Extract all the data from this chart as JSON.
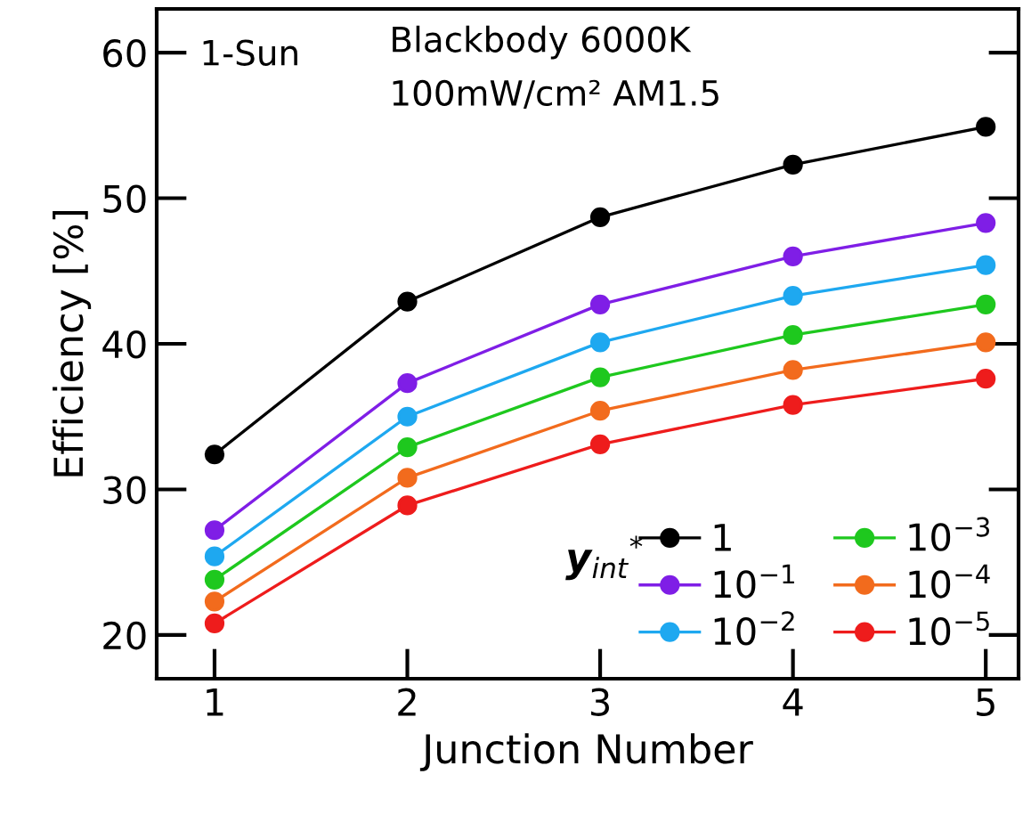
{
  "chart_data": {
    "type": "line",
    "xlabel": "Junction Number",
    "ylabel": "Efficiency [%]",
    "x": [
      1,
      2,
      3,
      4,
      5
    ],
    "xlim": [
      0.7,
      5.17
    ],
    "xticks": [
      1,
      2,
      3,
      4,
      5
    ],
    "ylim": [
      17,
      63
    ],
    "yticks": [
      20,
      30,
      40,
      50,
      60
    ],
    "annotations": [
      "1-Sun",
      "Blackbody 6000K",
      "100mW/cm² AM1.5"
    ],
    "legend_title": "y$_{int}$$^{*}$",
    "legend": "bottom right",
    "marker": "circle",
    "line_style": "solid",
    "grid": false,
    "series": [
      {
        "name": "1",
        "color": "#000000",
        "values": [
          32.4,
          42.9,
          48.7,
          52.3,
          54.9
        ]
      },
      {
        "name": "10$^{−1}$",
        "color": "#7f1ee6",
        "values": [
          27.2,
          37.3,
          42.7,
          46.0,
          48.3
        ]
      },
      {
        "name": "10$^{−2}$",
        "color": "#1ea8f0",
        "values": [
          25.4,
          35.0,
          40.1,
          43.3,
          45.4
        ]
      },
      {
        "name": "10$^{−3}$",
        "color": "#1ec81e",
        "values": [
          23.8,
          32.9,
          37.7,
          40.6,
          42.7
        ]
      },
      {
        "name": "10$^{−4}$",
        "color": "#f26b1d",
        "values": [
          22.3,
          30.8,
          35.4,
          38.2,
          40.1
        ]
      },
      {
        "name": "10$^{−5}$",
        "color": "#ee1c1c",
        "values": [
          20.8,
          28.9,
          33.1,
          35.8,
          37.6
        ]
      }
    ]
  }
}
